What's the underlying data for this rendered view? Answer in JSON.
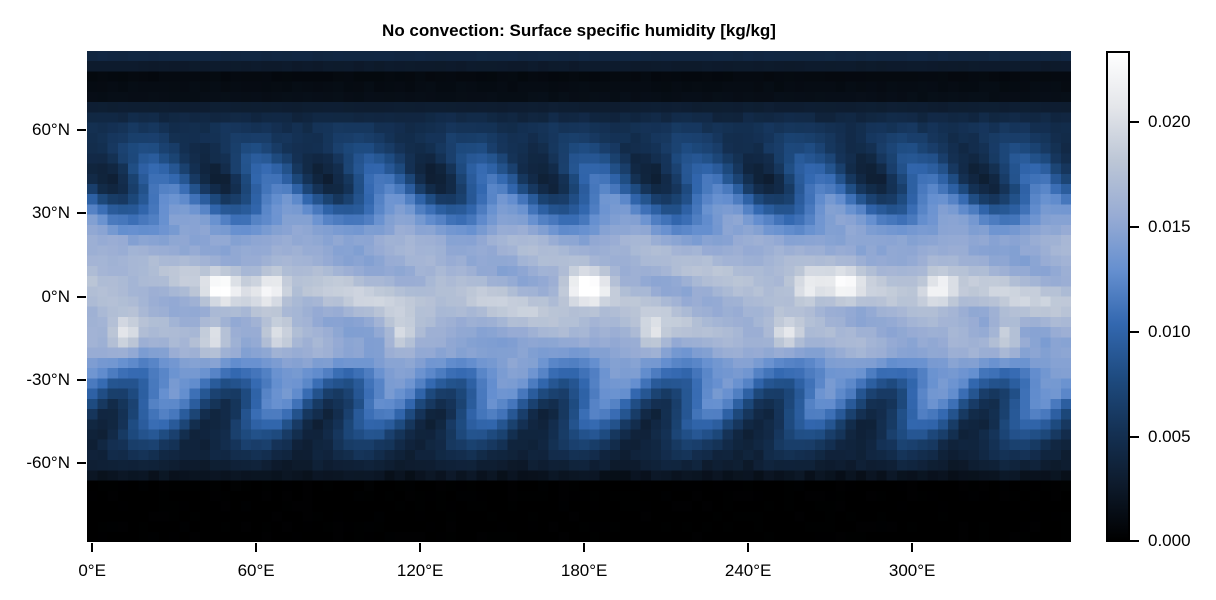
{
  "chart_data": {
    "type": "heatmap",
    "title": "No convection: Surface specific humidity [kg/kg]",
    "xlabel": "",
    "ylabel": "",
    "x_ticks": [
      {
        "value": 0,
        "label": "0°E"
      },
      {
        "value": 60,
        "label": "60°E"
      },
      {
        "value": 120,
        "label": "120°E"
      },
      {
        "value": 180,
        "label": "180°E"
      },
      {
        "value": 240,
        "label": "240°E"
      },
      {
        "value": 300,
        "label": "300°E"
      }
    ],
    "y_ticks": [
      {
        "value": 60,
        "label": "60°N"
      },
      {
        "value": 30,
        "label": "30°N"
      },
      {
        "value": 0,
        "label": "0°N"
      },
      {
        "value": -30,
        "label": "-30°N"
      },
      {
        "value": -60,
        "label": "-60°N"
      }
    ],
    "xlim": [
      -1.875,
      358.125
    ],
    "ylim": [
      -88.57,
      88.57
    ],
    "grid": {
      "nlon": 96,
      "nlat": 48
    },
    "colorbar": {
      "label": "",
      "range": [
        0.0,
        0.0234
      ],
      "ticks": [
        {
          "value": 0.0,
          "label": "0.000"
        },
        {
          "value": 0.005,
          "label": "0.005"
        },
        {
          "value": 0.01,
          "label": "0.010"
        },
        {
          "value": 0.015,
          "label": "0.015"
        },
        {
          "value": 0.02,
          "label": "0.020"
        }
      ],
      "colormap": "oslo",
      "stops": [
        "#000000",
        "#0d1a2b",
        "#143154",
        "#1e4b80",
        "#3368b0",
        "#6690d0",
        "#98acd4",
        "#bcc6d6",
        "#e4e6ea",
        "#ffffff"
      ]
    },
    "field_description": {
      "zonal_profile_lat": [
        -88,
        -75,
        -68,
        -60,
        -50,
        -40,
        -30,
        -20,
        -10,
        0,
        10,
        20,
        30,
        40,
        50,
        60,
        70,
        80,
        88
      ],
      "zonal_profile_q": [
        0.0,
        0.0,
        0.0008,
        0.0035,
        0.006,
        0.0085,
        0.0115,
        0.015,
        0.0165,
        0.0175,
        0.0165,
        0.0155,
        0.012,
        0.0075,
        0.0065,
        0.0055,
        0.0025,
        0.0015,
        0.0045
      ],
      "wave_number": 9,
      "equatorial_maxima_lon": [
        48,
        65,
        178,
        184,
        262,
        275,
        310
      ],
      "equatorial_maxima_q": 0.023,
      "southern_hemisphere_maxima_lon": [
        12,
        45,
        68,
        113,
        205,
        254,
        335
      ],
      "southern_hemisphere_maxima_q": 0.021
    }
  }
}
